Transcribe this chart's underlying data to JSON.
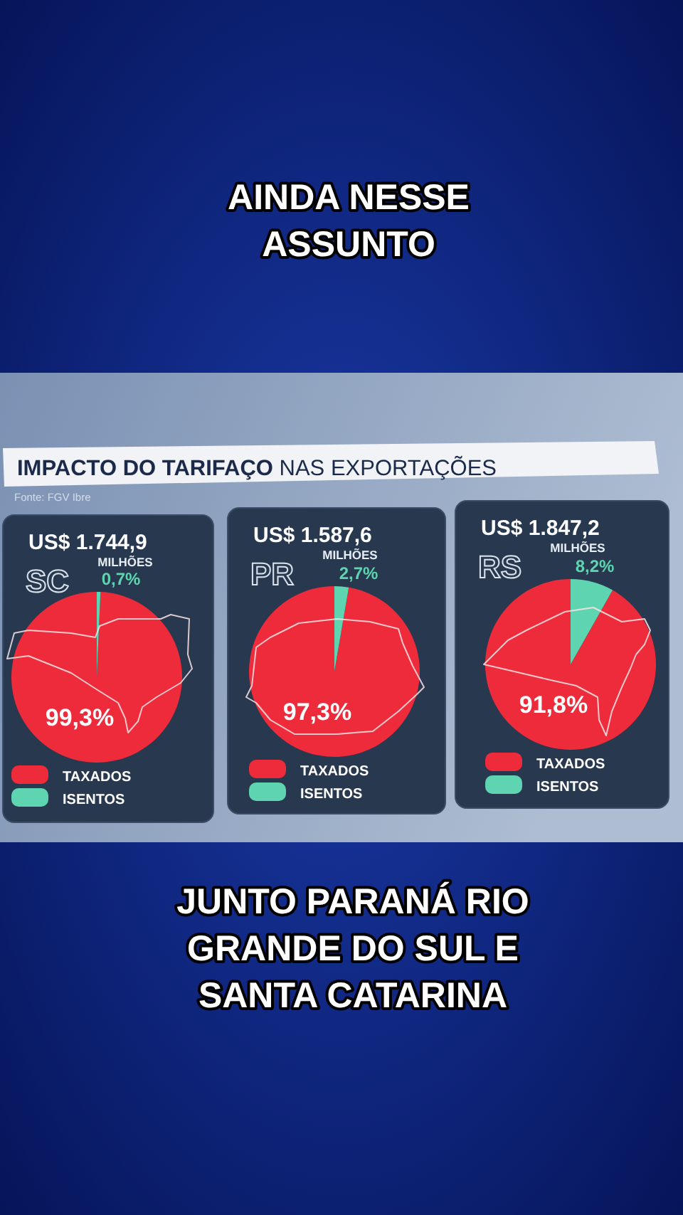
{
  "chart_data": [
    {
      "type": "other",
      "annotations": [
        "AINDA NESSE ASSUNTO"
      ]
    },
    {
      "type": "other",
      "title": "IMPACTO DO TARIFAÇO NAS EXPORTAÇÕES",
      "annotations": [
        "Fonte: FGV Ibre"
      ]
    },
    {
      "type": "pie",
      "title": "US$ 1.744,9",
      "subtitle": "MILHÕES",
      "annotations": [
        "SC"
      ],
      "categories": [
        "TAXADOS",
        "ISENTOS"
      ],
      "values": [
        99.3,
        0.7
      ],
      "colors": [
        "#ee2b3b",
        "#5fd4b1"
      ],
      "value_labels": [
        "99,3%",
        "0,7%"
      ],
      "legend": "bottom"
    },
    {
      "type": "pie",
      "title": "US$ 1.587,6",
      "subtitle": "MILHÕES",
      "annotations": [
        "PR"
      ],
      "categories": [
        "TAXADOS",
        "ISENTOS"
      ],
      "values": [
        97.3,
        2.7
      ],
      "colors": [
        "#ee2b3b",
        "#5fd4b1"
      ],
      "value_labels": [
        "97,3%",
        "2,7%"
      ],
      "legend": "bottom"
    },
    {
      "type": "pie",
      "title": "US$ 1.847,2",
      "subtitle": "MILHÕES",
      "annotations": [
        "RS"
      ],
      "categories": [
        "TAXADOS",
        "ISENTOS"
      ],
      "values": [
        91.8,
        8.2
      ],
      "colors": [
        "#ee2b3b",
        "#5fd4b1"
      ],
      "value_labels": [
        "91,8%",
        "8,2%"
      ],
      "legend": "bottom"
    },
    {
      "type": "other",
      "annotations": [
        "JUNTO PARANÁ RIO GRANDE DO SUL E SANTA CATARINA"
      ]
    }
  ]
}
